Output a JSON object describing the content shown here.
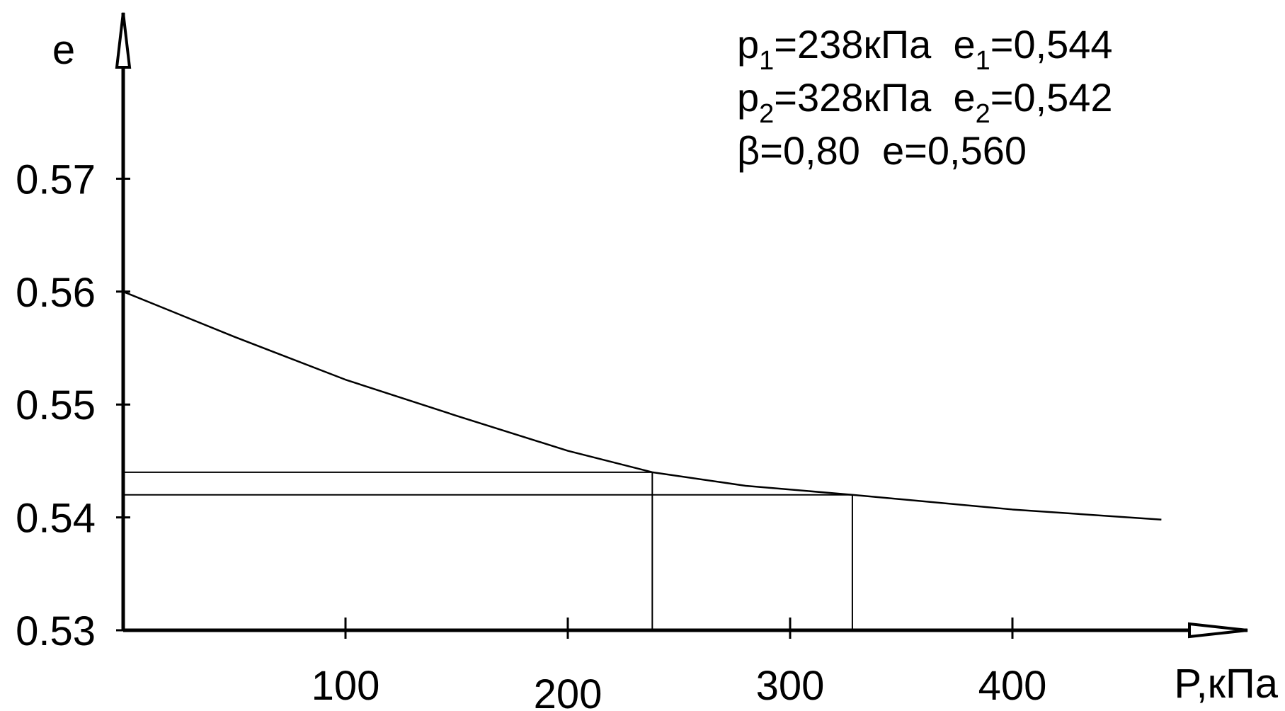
{
  "chart_data": {
    "type": "line",
    "x_label": "P,кПа",
    "y_label": "e",
    "x": [
      0,
      50,
      100,
      150,
      200,
      238,
      280,
      328,
      400,
      467
    ],
    "series": [
      {
        "color": "#000000",
        "values": [
          0.56,
          0.556,
          0.5522,
          0.549,
          0.5459,
          0.544,
          0.5428,
          0.542,
          0.5407,
          0.5398
        ]
      }
    ],
    "xlim": [
      0,
      500
    ],
    "ylim": [
      0.53,
      0.58
    ],
    "xticks": [
      100,
      200,
      300,
      400
    ],
    "yticks": [
      0.53,
      0.54,
      0.55,
      0.56,
      0.57
    ],
    "reference_points": [
      {
        "p": 238,
        "e": 0.544
      },
      {
        "p": 328,
        "e": 0.542
      }
    ],
    "annotation_lines": [
      [
        {
          "text": "p"
        },
        {
          "text": "1",
          "sub": true
        },
        {
          "text": "=238кПа  e"
        },
        {
          "text": "1",
          "sub": true
        },
        {
          "text": "=0,544"
        }
      ],
      [
        {
          "text": "p"
        },
        {
          "text": "2",
          "sub": true
        },
        {
          "text": "=328кПа  e"
        },
        {
          "text": "2",
          "sub": true
        },
        {
          "text": "=0,542"
        }
      ],
      [
        {
          "text": "β=0,80  e=0,560"
        }
      ]
    ]
  }
}
